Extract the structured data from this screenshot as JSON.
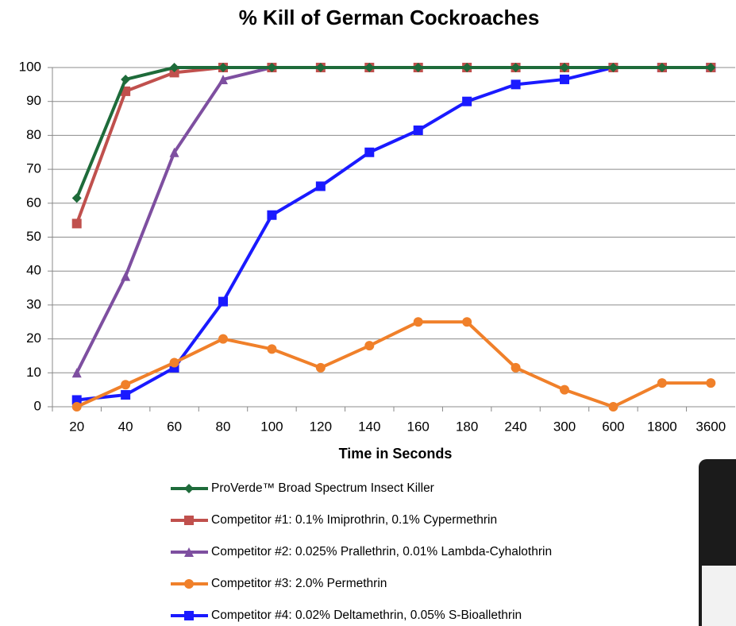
{
  "chart_data": {
    "type": "line",
    "title": "% Kill of German Cockroaches",
    "x_label": "Time in Seconds",
    "categories": [
      "20",
      "40",
      "60",
      "80",
      "100",
      "120",
      "140",
      "160",
      "180",
      "240",
      "300",
      "600",
      "1800",
      "3600"
    ],
    "ylim": [
      0,
      100
    ],
    "yticks": [
      0,
      10,
      20,
      30,
      40,
      50,
      60,
      70,
      80,
      90,
      100
    ],
    "grid": true,
    "series": [
      {
        "name": "ProVerde™ Broad Spectrum Insect Killer",
        "color": "#1e6b3a",
        "marker": "diamond",
        "values": [
          61.5,
          96.5,
          100,
          100,
          100,
          100,
          100,
          100,
          100,
          100,
          100,
          100,
          100,
          100
        ]
      },
      {
        "name": "Competitor #1: 0.1% Imiprothrin, 0.1% Cypermethrin",
        "color": "#c0504d",
        "marker": "square",
        "values": [
          54,
          93,
          98.5,
          100,
          100,
          100,
          100,
          100,
          100,
          100,
          100,
          100,
          100,
          100
        ]
      },
      {
        "name": "Competitor #2: 0.025% Prallethrin, 0.01% Lambda-Cyhalothrin",
        "color": "#7e4fa0",
        "marker": "triangle",
        "values": [
          10,
          38.5,
          75,
          96.5,
          100,
          100,
          100,
          100,
          100,
          100,
          100,
          100,
          100,
          100
        ]
      },
      {
        "name": "Competitor #3: 2.0% Permethrin",
        "color": "#f0802a",
        "marker": "circle",
        "values": [
          0,
          6.5,
          13,
          20,
          17,
          11.5,
          18,
          25,
          25,
          11.5,
          5,
          0,
          7,
          7
        ]
      },
      {
        "name": "Competitor #4: 0.02% Deltamethrin, 0.05% S-Bioallethrin",
        "color": "#1a1aff",
        "marker": "square",
        "values": [
          2,
          3.5,
          11.5,
          31,
          56.5,
          65,
          75,
          81.5,
          90,
          95,
          96.5,
          100,
          100,
          100
        ]
      }
    ]
  }
}
